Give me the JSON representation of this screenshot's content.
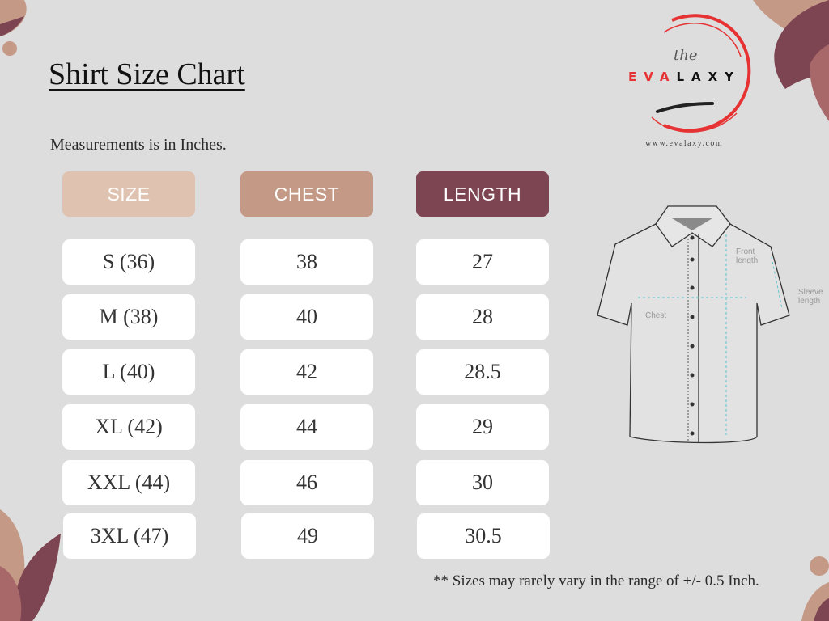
{
  "title": "Shirt Size Chart",
  "subtitle": "Measurements is in Inches.",
  "colors": {
    "background": "#dedddd",
    "size_header": "#dfc3b0",
    "chest_header": "#c49a86",
    "length_header": "#7d4452",
    "logo_red": "#e63232"
  },
  "brand": {
    "the": "the",
    "name_red": "EVA",
    "name_black": "LAXY",
    "url": "www.evalaxy.com"
  },
  "table": {
    "headers": [
      "SIZE",
      "CHEST",
      "LENGTH"
    ],
    "rows": [
      [
        "S (36)",
        "38",
        "27"
      ],
      [
        "M (38)",
        "40",
        "28"
      ],
      [
        "L (40)",
        "42",
        "28.5"
      ],
      [
        "XL (42)",
        "44",
        "29"
      ],
      [
        "XXL (44)",
        "46",
        "30"
      ],
      [
        "3XL (47)",
        "49",
        "30.5"
      ]
    ]
  },
  "diagram": {
    "chest": "Chest",
    "front_length": [
      "Front",
      "length"
    ],
    "sleeve_length": [
      "Sleeve",
      "length"
    ]
  },
  "note": "** Sizes may rarely vary in the range of +/- 0.5 Inch."
}
